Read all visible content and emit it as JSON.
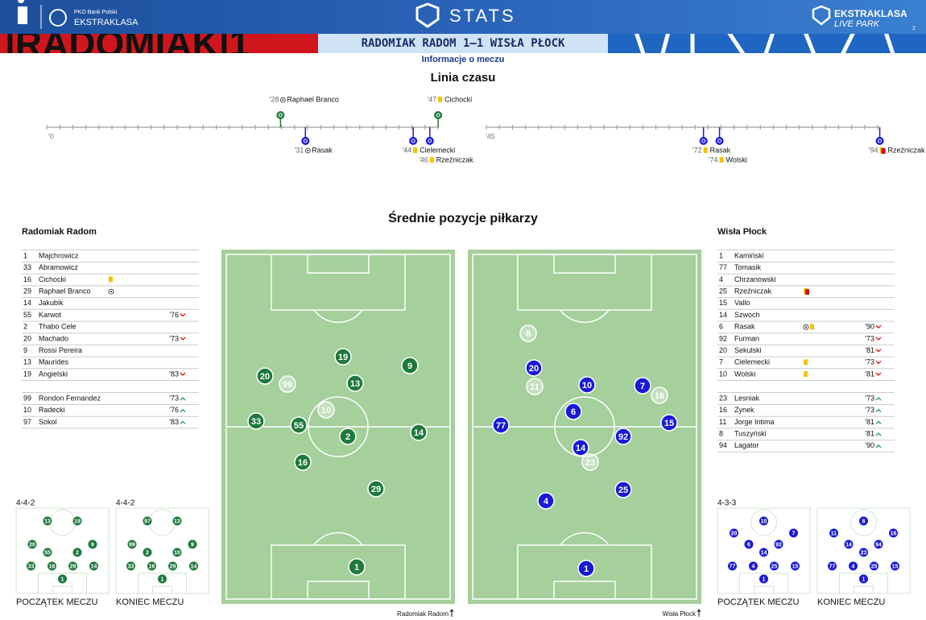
{
  "header": {
    "league_top": "PKO Bank Polski",
    "league": "EKSTRAKLASA",
    "stats": "STATS",
    "brand": "EKSTRAKLASA",
    "brand2": "LIVE PARK",
    "page": "2",
    "banner": "|RADOMIAK|1",
    "match": "RADOMIAK RADOM 1–1 WISŁA PŁOCK",
    "subtitle": "Informacje o meczu"
  },
  "timeline": {
    "title": "Linia czasu",
    "start1": "'0",
    "start2": "'45",
    "first_half": [
      {
        "minute": "'28",
        "player": "Raphael Branco",
        "team": "home",
        "kind": "goal"
      },
      {
        "minute": "'31",
        "player": "Rasak",
        "team": "away",
        "kind": "goal"
      },
      {
        "minute": "'44",
        "player": "Cielemecki",
        "team": "away",
        "kind": "yellow"
      },
      {
        "minute": "'46",
        "player": "Rzeźniczak",
        "team": "away",
        "kind": "yellow"
      },
      {
        "minute": "'47",
        "player": "Cichocki",
        "team": "home",
        "kind": "yellow"
      }
    ],
    "second_half": [
      {
        "minute": "'72",
        "player": "Rasak",
        "team": "away",
        "kind": "yellow"
      },
      {
        "minute": "'74",
        "player": "Wolski",
        "team": "away",
        "kind": "yellow"
      },
      {
        "minute": "'94",
        "player": "Rzeźniczak",
        "team": "away",
        "kind": "second-yellow"
      }
    ]
  },
  "positions": {
    "title": "Średnie pozycje piłkarzy"
  },
  "home": {
    "name": "Radomiak Radom",
    "caption": "Radomiak Radom",
    "lineup": [
      {
        "no": 1,
        "name": "Majchrowicz"
      },
      {
        "no": 33,
        "name": "Abramowicz"
      },
      {
        "no": 16,
        "name": "Cichocki",
        "cards": [
          "yellow"
        ]
      },
      {
        "no": 29,
        "name": "Raphael Branco",
        "goal": true
      },
      {
        "no": 14,
        "name": "Jakubik"
      },
      {
        "no": 55,
        "name": "Karwot",
        "sub": "'76",
        "sub_dir": "out"
      },
      {
        "no": 2,
        "name": "Thabo Cele"
      },
      {
        "no": 20,
        "name": "Machado",
        "sub": "'73",
        "sub_dir": "out"
      },
      {
        "no": 9,
        "name": "Rossi Pereira"
      },
      {
        "no": 13,
        "name": "Maurides"
      },
      {
        "no": 19,
        "name": "Angielski",
        "sub": "'83",
        "sub_dir": "out"
      }
    ],
    "subs": [
      {
        "no": 99,
        "name": "Rondon Fernandez",
        "sub": "'73",
        "sub_dir": "in"
      },
      {
        "no": 10,
        "name": "Radecki",
        "sub": "'76",
        "sub_dir": "in"
      },
      {
        "no": 97,
        "name": "Sokol",
        "sub": "'83",
        "sub_dir": "in"
      }
    ],
    "pitch": [
      {
        "no": 19
      },
      {
        "no": 9
      },
      {
        "no": 20
      },
      {
        "no": 99,
        "faded": true
      },
      {
        "no": 13
      },
      {
        "no": 10,
        "faded": true
      },
      {
        "no": 33
      },
      {
        "no": 55
      },
      {
        "no": 2
      },
      {
        "no": 14
      },
      {
        "no": 16
      },
      {
        "no": 29
      },
      {
        "no": 1
      }
    ],
    "start": {
      "formation": "4-4-2",
      "label": "POCZĄTEK MECZU",
      "rows": [
        [
          13,
          19
        ],
        [
          20,
          9
        ],
        [
          55,
          2
        ],
        [
          33,
          16,
          29,
          14
        ],
        [
          1
        ]
      ]
    },
    "end": {
      "formation": "4-4-2",
      "label": "KONIEC MECZU",
      "rows": [
        [
          97,
          13
        ],
        [
          99,
          9
        ],
        [
          2,
          10
        ],
        [
          33,
          16,
          29,
          14
        ],
        [
          1
        ]
      ]
    }
  },
  "away": {
    "name": "Wisła Płock",
    "caption": "Wisła Płock",
    "lineup": [
      {
        "no": 1,
        "name": "Kamiński"
      },
      {
        "no": 77,
        "name": "Tomasik"
      },
      {
        "no": 4,
        "name": "Chrzanowski"
      },
      {
        "no": 25,
        "name": "Rzeźniczak",
        "cards": [
          "second-yellow"
        ]
      },
      {
        "no": 15,
        "name": "Vallo"
      },
      {
        "no": 14,
        "name": "Szwoch"
      },
      {
        "no": 6,
        "name": "Rasak",
        "goal": true,
        "cards": [
          "yellow"
        ],
        "sub": "'90",
        "sub_dir": "out"
      },
      {
        "no": 92,
        "name": "Furman",
        "sub": "'73",
        "sub_dir": "out"
      },
      {
        "no": 20,
        "name": "Sekulski",
        "sub": "'81",
        "sub_dir": "out"
      },
      {
        "no": 7,
        "name": "Cielemecki",
        "cards": [
          "yellow"
        ],
        "sub": "'73",
        "sub_dir": "out"
      },
      {
        "no": 10,
        "name": "Wolski",
        "cards": [
          "yellow"
        ],
        "sub": "'81",
        "sub_dir": "out"
      }
    ],
    "subs": [
      {
        "no": 23,
        "name": "Lesniak",
        "sub": "'73",
        "sub_dir": "in"
      },
      {
        "no": 16,
        "name": "Zynek",
        "sub": "'73",
        "sub_dir": "in"
      },
      {
        "no": 11,
        "name": "Jorge Intima",
        "sub": "'81",
        "sub_dir": "in"
      },
      {
        "no": 8,
        "name": "Tuszyński",
        "sub": "'81",
        "sub_dir": "in"
      },
      {
        "no": 94,
        "name": "Lagator",
        "sub": "'90",
        "sub_dir": "in"
      }
    ],
    "pitch": [
      {
        "no": 8,
        "faded": true
      },
      {
        "no": 20
      },
      {
        "no": 11,
        "faded": true
      },
      {
        "no": 10
      },
      {
        "no": 7
      },
      {
        "no": 16,
        "faded": true
      },
      {
        "no": 6
      },
      {
        "no": 15
      },
      {
        "no": 77
      },
      {
        "no": 92
      },
      {
        "no": 14
      },
      {
        "no": 23,
        "faded": true
      },
      {
        "no": 25
      },
      {
        "no": 4
      },
      {
        "no": 1
      }
    ],
    "start": {
      "formation": "4-3-3",
      "label": "POCZĄTEK MECZU",
      "rows": [
        [
          10
        ],
        [
          20,
          7
        ],
        [
          6,
          92
        ],
        [
          14
        ],
        [
          77,
          4,
          25,
          15
        ],
        [
          1
        ]
      ]
    },
    "end": {
      "label": "KONIEC MECZU",
      "rows": [
        [
          8
        ],
        [
          11,
          16
        ],
        [
          14,
          94
        ],
        [
          23
        ],
        [
          77,
          4,
          25,
          15
        ],
        [
          1
        ]
      ]
    }
  }
}
